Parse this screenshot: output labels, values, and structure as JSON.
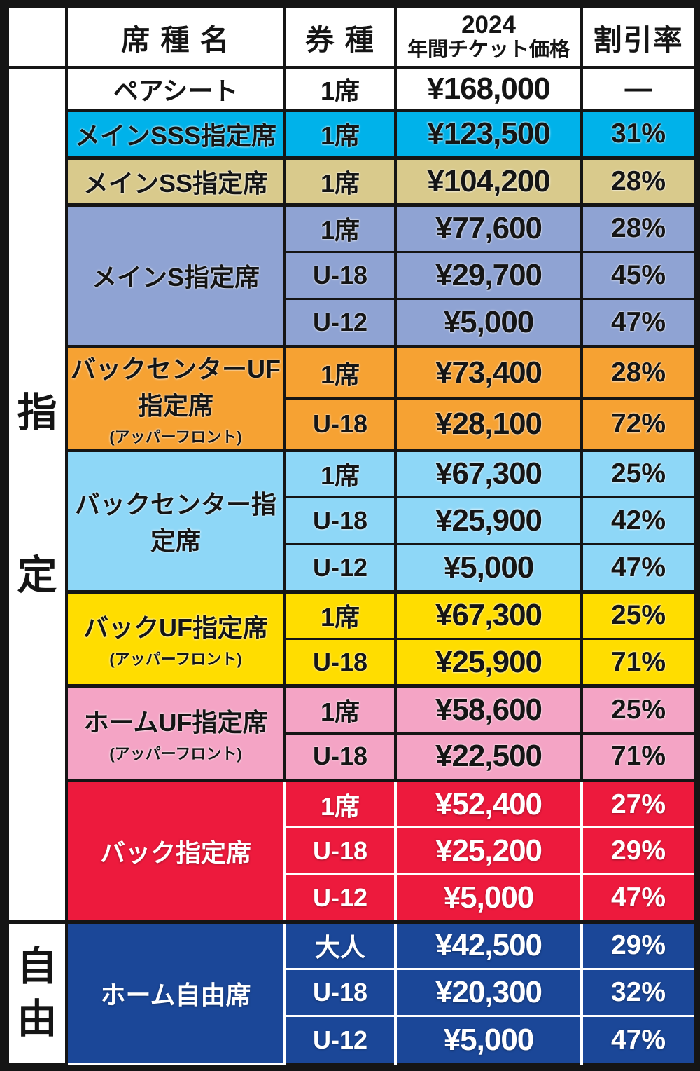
{
  "header": {
    "seat_name": "席 種 名",
    "ticket_type": "券 種",
    "price_line1": "2024",
    "price_line2": "年間チケット価格",
    "discount": "割引率"
  },
  "palette": {
    "grid": "#151515",
    "pair_seat": "#ffffff",
    "main_sss": "#00b2ea",
    "main_ss": "#d9ca8c",
    "main_s": "#8fa3d3",
    "back_center_uf": "#f6a233",
    "back_center": "#8ed7f7",
    "back_uf": "#ffdd00",
    "home_uf": "#f4a4c5",
    "back": "#ed1a3d",
    "home_free": "#1b4798"
  },
  "groups": [
    {
      "label": "指定",
      "label_chars": [
        "指",
        "定"
      ],
      "seats": [
        {
          "name": "ペアシート",
          "rows": [
            {
              "type": "1席",
              "price": "¥168,000",
              "discount": "—"
            }
          ]
        },
        {
          "name": "メインSSS指定席",
          "rows": [
            {
              "type": "1席",
              "price": "¥123,500",
              "discount": "31%"
            }
          ]
        },
        {
          "name": "メインSS指定席",
          "rows": [
            {
              "type": "1席",
              "price": "¥104,200",
              "discount": "28%"
            }
          ]
        },
        {
          "name": "メインS指定席",
          "rows": [
            {
              "type": "1席",
              "price": "¥77,600",
              "discount": "28%"
            },
            {
              "type": "U-18",
              "price": "¥29,700",
              "discount": "45%"
            },
            {
              "type": "U-12",
              "price": "¥5,000",
              "discount": "47%"
            }
          ]
        },
        {
          "name": "バックセンターUF指定席",
          "subtitle": "(アッパーフロント)",
          "rows": [
            {
              "type": "1席",
              "price": "¥73,400",
              "discount": "28%"
            },
            {
              "type": "U-18",
              "price": "¥28,100",
              "discount": "72%"
            }
          ]
        },
        {
          "name": "バックセンター指定席",
          "rows": [
            {
              "type": "1席",
              "price": "¥67,300",
              "discount": "25%"
            },
            {
              "type": "U-18",
              "price": "¥25,900",
              "discount": "42%"
            },
            {
              "type": "U-12",
              "price": "¥5,000",
              "discount": "47%"
            }
          ]
        },
        {
          "name": "バックUF指定席",
          "subtitle": "(アッパーフロント)",
          "rows": [
            {
              "type": "1席",
              "price": "¥67,300",
              "discount": "25%"
            },
            {
              "type": "U-18",
              "price": "¥25,900",
              "discount": "71%"
            }
          ]
        },
        {
          "name": "ホームUF指定席",
          "subtitle": "(アッパーフロント)",
          "rows": [
            {
              "type": "1席",
              "price": "¥58,600",
              "discount": "25%"
            },
            {
              "type": "U-18",
              "price": "¥22,500",
              "discount": "71%"
            }
          ]
        },
        {
          "name": "バック指定席",
          "rows": [
            {
              "type": "1席",
              "price": "¥52,400",
              "discount": "27%"
            },
            {
              "type": "U-18",
              "price": "¥25,200",
              "discount": "29%"
            },
            {
              "type": "U-12",
              "price": "¥5,000",
              "discount": "47%"
            }
          ]
        }
      ]
    },
    {
      "label": "自由",
      "label_chars": [
        "自",
        "由"
      ],
      "seats": [
        {
          "name": "ホーム自由席",
          "rows": [
            {
              "type": "大人",
              "price": "¥42,500",
              "discount": "29%"
            },
            {
              "type": "U-18",
              "price": "¥20,300",
              "discount": "32%"
            },
            {
              "type": "U-12",
              "price": "¥5,000",
              "discount": "47%"
            }
          ]
        }
      ]
    }
  ]
}
